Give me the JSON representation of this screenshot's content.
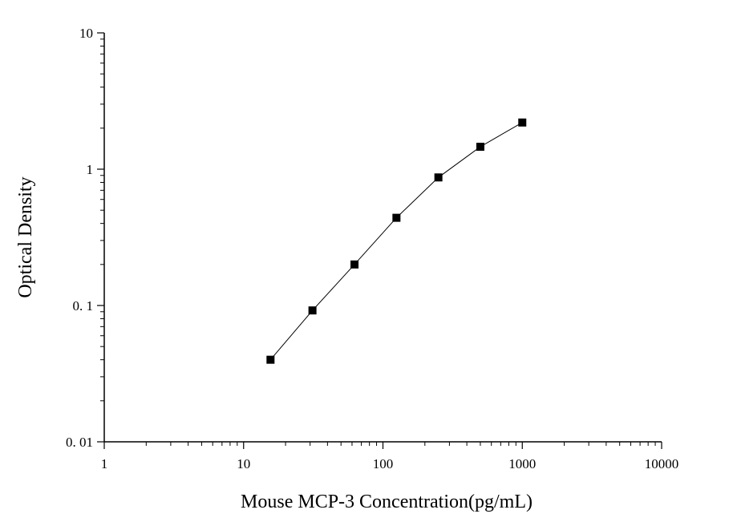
{
  "chart_data": {
    "type": "scatter",
    "title": "",
    "xlabel": "Mouse MCP-3 Concentration(pg/mL)",
    "ylabel": "Optical Density",
    "x_scale": "log",
    "y_scale": "log",
    "xlim": [
      1,
      10000
    ],
    "ylim": [
      0.01,
      10
    ],
    "x_ticks": [
      1,
      10,
      100,
      1000,
      10000
    ],
    "x_tick_labels": [
      "1",
      "10",
      "100",
      "1000",
      "10000"
    ],
    "y_ticks": [
      0.01,
      0.1,
      1,
      10
    ],
    "y_tick_labels": [
      "0. 01",
      "0. 1",
      "1",
      "10"
    ],
    "grid": false,
    "legend": "none",
    "connect_points": true,
    "marker": "square",
    "colors": {
      "marker": "#000000",
      "line": "#000000",
      "axis": "#000000"
    },
    "series": [
      {
        "x": [
          15.6,
          31.2,
          62.5,
          125,
          250,
          500,
          1000
        ],
        "y": [
          0.04,
          0.092,
          0.2,
          0.44,
          0.87,
          1.46,
          2.2
        ]
      }
    ]
  }
}
